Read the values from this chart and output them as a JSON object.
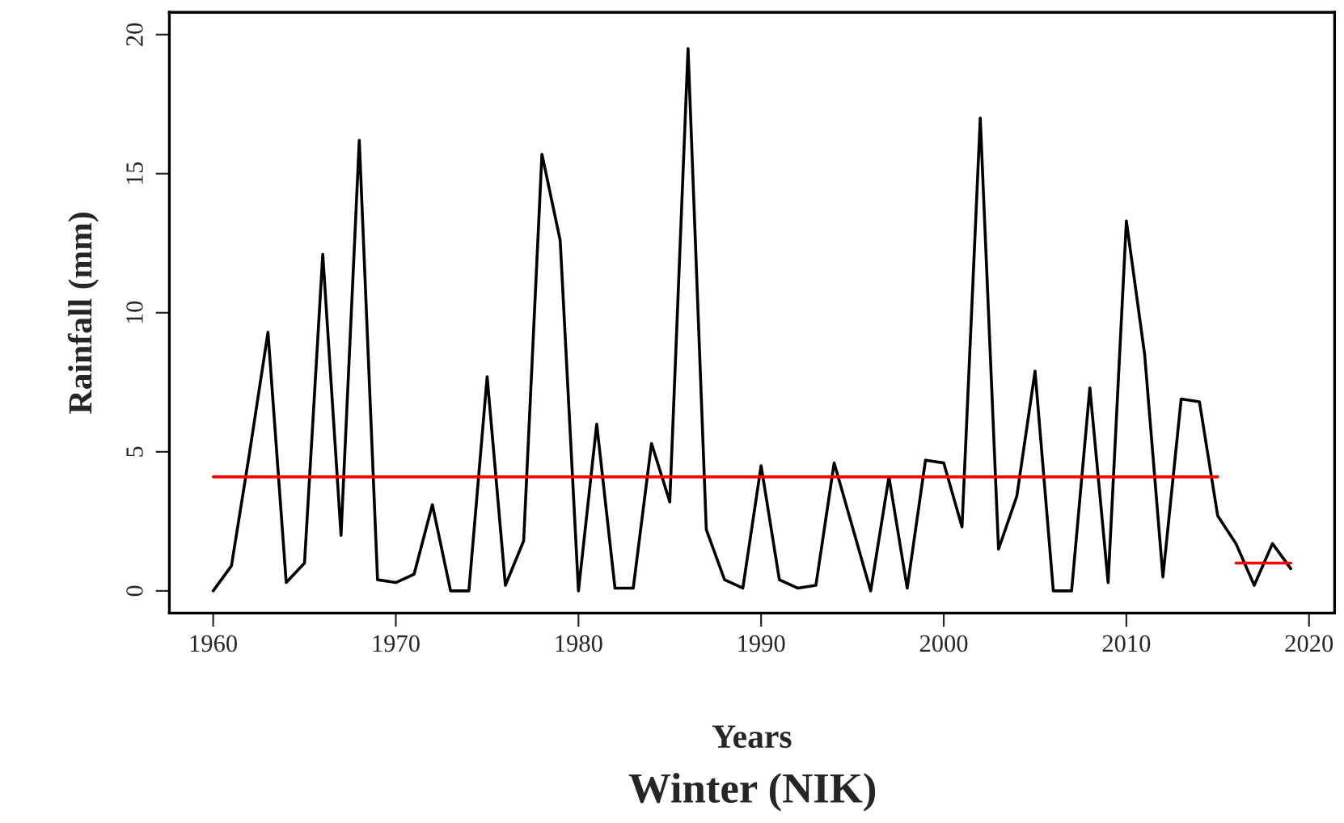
{
  "chart_data": {
    "type": "line",
    "title": "Winter (NIK)",
    "xlabel": "Years",
    "ylabel": "Rainfall (mm)",
    "x": [
      1960,
      1961,
      1962,
      1963,
      1964,
      1965,
      1966,
      1967,
      1968,
      1969,
      1970,
      1971,
      1972,
      1973,
      1974,
      1975,
      1976,
      1977,
      1978,
      1979,
      1980,
      1981,
      1982,
      1983,
      1984,
      1985,
      1986,
      1987,
      1988,
      1989,
      1990,
      1991,
      1992,
      1993,
      1994,
      1995,
      1996,
      1997,
      1998,
      1999,
      2000,
      2001,
      2002,
      2003,
      2004,
      2005,
      2006,
      2007,
      2008,
      2009,
      2010,
      2011,
      2012,
      2013,
      2014,
      2015,
      2016,
      2017,
      2018,
      2019
    ],
    "series": [
      {
        "color": "#000000",
        "values": [
          0,
          0.9,
          5.0,
          9.3,
          0.3,
          1.0,
          12.1,
          2.0,
          16.2,
          0.4,
          0.3,
          0.6,
          3.1,
          0,
          0,
          7.7,
          0.2,
          1.8,
          15.7,
          12.6,
          0,
          6.0,
          0.1,
          0.1,
          5.3,
          3.2,
          19.5,
          2.2,
          0.4,
          0.1,
          4.5,
          0.4,
          0.1,
          0.2,
          4.6,
          2.3,
          0,
          4.1,
          0.1,
          4.7,
          4.6,
          2.3,
          17.0,
          1.5,
          3.4,
          7.9,
          0,
          0,
          7.3,
          0.3,
          13.3,
          8.5,
          0.5,
          6.9,
          6.8,
          2.7,
          1.7,
          0.2,
          1.7,
          0.8
        ]
      },
      {
        "type": "line",
        "color": "#ff0000",
        "x": [
          1960,
          2015
        ],
        "values": [
          4.1,
          4.1
        ]
      },
      {
        "type": "line",
        "color": "#ff0000",
        "x": [
          2016,
          2019
        ],
        "values": [
          1.0,
          1.0
        ]
      }
    ],
    "xlim": [
      1957.6,
      2021.4
    ],
    "ylim": [
      -0.8,
      20.8
    ],
    "xticks": [
      1960,
      1970,
      1980,
      1990,
      2000,
      2010,
      2020
    ],
    "yticks": [
      0,
      5,
      10,
      15,
      20
    ],
    "grid": false,
    "marker": "none",
    "line_style": "solid"
  }
}
